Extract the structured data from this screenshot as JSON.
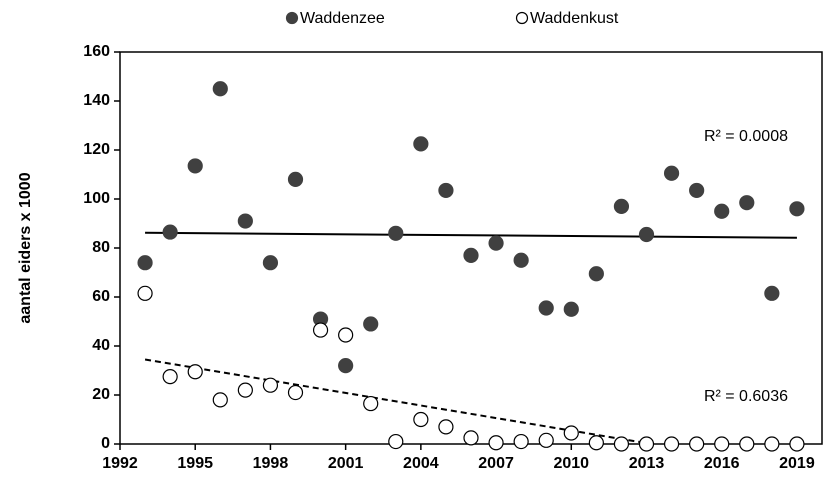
{
  "chart_data": {
    "type": "scatter",
    "y_label": "aantal eiders x 1000",
    "xlim": [
      1992,
      2020
    ],
    "ylim": [
      0,
      160
    ],
    "xticks": [
      1992,
      1995,
      1998,
      2001,
      2004,
      2007,
      2010,
      2013,
      2016,
      2019
    ],
    "yticks": [
      0,
      20,
      40,
      60,
      80,
      100,
      120,
      140,
      160
    ],
    "grid": false,
    "legend": "top",
    "series": [
      {
        "name": "Waddenzee",
        "color": "#404040",
        "filled": true,
        "x": [
          1993,
          1994,
          1995,
          1996,
          1997,
          1998,
          1999,
          2000,
          2001,
          2002,
          2003,
          2004,
          2005,
          2006,
          2007,
          2008,
          2009,
          2010,
          2011,
          2012,
          2013,
          2014,
          2015,
          2016,
          2017,
          2018,
          2019
        ],
        "values": [
          74,
          86.5,
          113.5,
          145,
          91,
          74,
          108,
          51,
          32,
          49,
          86,
          122.5,
          103.5,
          77,
          82,
          75,
          55.5,
          55,
          69.5,
          97,
          85.5,
          110.5,
          103.5,
          95,
          98.5,
          61.5,
          96
        ],
        "trendline": {
          "x": [
            1993,
            2019
          ],
          "values": [
            86.2,
            84.2
          ],
          "dashed": false,
          "label": "R² = 0.0008"
        }
      },
      {
        "name": "Waddenkust",
        "color": "#000000",
        "filled": false,
        "x": [
          1993,
          1994,
          1995,
          1996,
          1997,
          1998,
          1999,
          2000,
          2001,
          2002,
          2003,
          2004,
          2005,
          2006,
          2007,
          2008,
          2009,
          2010,
          2011,
          2012,
          2013,
          2014,
          2015,
          2016,
          2017,
          2018,
          2019
        ],
        "values": [
          61.5,
          27.5,
          29.5,
          18,
          22,
          24,
          21,
          46.5,
          44.5,
          16.5,
          1,
          10,
          7,
          2.5,
          0.5,
          1,
          1.5,
          4.5,
          0.5,
          0,
          0,
          0,
          0,
          0,
          0,
          0,
          0
        ],
        "trendline": {
          "x": [
            1993,
            2013.2
          ],
          "values": [
            34.5,
            0
          ],
          "dashed": true,
          "label": "R² = 0.6036"
        }
      }
    ]
  }
}
